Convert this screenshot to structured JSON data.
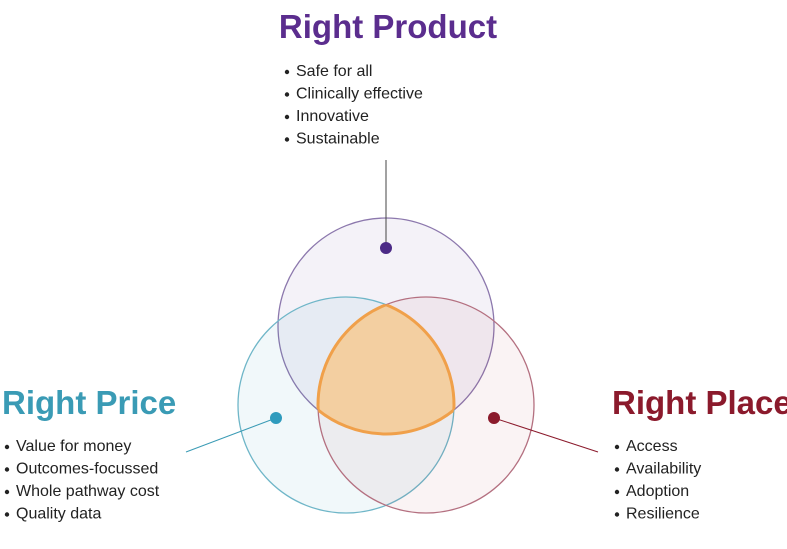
{
  "groups": [
    {
      "title": "Right Product",
      "items": [
        "Safe for all",
        "Clinically effective",
        "Innovative",
        "Sustainable"
      ]
    },
    {
      "title": "Right Price",
      "items": [
        "Value for money",
        "Outcomes-focussed",
        "Whole pathway cost",
        "Quality data"
      ]
    },
    {
      "title": "Right Place",
      "items": [
        "Access",
        "Availability",
        "Adoption",
        "Resilience"
      ]
    }
  ]
}
